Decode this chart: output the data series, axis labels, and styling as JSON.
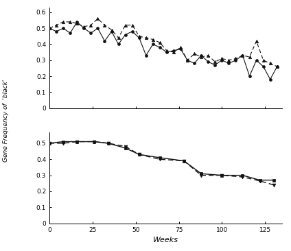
{
  "upper_solid_weeks": [
    0,
    4,
    8,
    12,
    16,
    20,
    24,
    28,
    32,
    36,
    40,
    44,
    48,
    52,
    56,
    60,
    64,
    68,
    72,
    76,
    80,
    84,
    88,
    92,
    96,
    100,
    104,
    108,
    112,
    116,
    120,
    124,
    128,
    132
  ],
  "upper_solid_vals": [
    0.5,
    0.48,
    0.5,
    0.47,
    0.54,
    0.5,
    0.47,
    0.5,
    0.42,
    0.48,
    0.4,
    0.46,
    0.48,
    0.44,
    0.33,
    0.4,
    0.38,
    0.35,
    0.36,
    0.37,
    0.3,
    0.28,
    0.33,
    0.29,
    0.27,
    0.3,
    0.28,
    0.3,
    0.33,
    0.2,
    0.3,
    0.26,
    0.18,
    0.26
  ],
  "upper_dashed_weeks": [
    0,
    4,
    8,
    12,
    16,
    20,
    24,
    28,
    32,
    36,
    40,
    44,
    48,
    52,
    56,
    60,
    64,
    68,
    72,
    76,
    80,
    84,
    88,
    92,
    96,
    100,
    104,
    108,
    112,
    116,
    120,
    124,
    128,
    132
  ],
  "upper_dashed_vals": [
    0.5,
    0.52,
    0.54,
    0.54,
    0.53,
    0.51,
    0.52,
    0.56,
    0.52,
    0.49,
    0.44,
    0.52,
    0.52,
    0.45,
    0.44,
    0.43,
    0.41,
    0.36,
    0.35,
    0.38,
    0.3,
    0.34,
    0.32,
    0.33,
    0.29,
    0.31,
    0.3,
    0.31,
    0.33,
    0.32,
    0.42,
    0.3,
    0.28,
    0.26
  ],
  "lower_solid_weeks": [
    0,
    8,
    16,
    26,
    34,
    44,
    52,
    64,
    78,
    88,
    100,
    112,
    122,
    130
  ],
  "lower_solid_vals": [
    0.5,
    0.51,
    0.51,
    0.51,
    0.5,
    0.47,
    0.43,
    0.41,
    0.39,
    0.31,
    0.3,
    0.3,
    0.27,
    0.27
  ],
  "lower_dashed_weeks": [
    0,
    8,
    16,
    26,
    34,
    44,
    52,
    64,
    78,
    88,
    100,
    112,
    122,
    130
  ],
  "lower_dashed_vals": [
    0.5,
    0.5,
    0.51,
    0.51,
    0.5,
    0.48,
    0.43,
    0.4,
    0.39,
    0.3,
    0.3,
    0.29,
    0.265,
    0.24
  ],
  "xlim": [
    0,
    135
  ],
  "ylim_upper": [
    0,
    0.63
  ],
  "ylim_lower": [
    0,
    0.57
  ],
  "yticks_upper": [
    0,
    0.1,
    0.2,
    0.3,
    0.4,
    0.5,
    0.6
  ],
  "yticks_lower": [
    0,
    0.1,
    0.2,
    0.3,
    0.4,
    0.5
  ],
  "ytick_labels_upper": [
    "0",
    "0.1",
    "0.2",
    "0.3",
    "0.4",
    "0.5",
    "0.6"
  ],
  "ytick_labels_lower": [
    "0",
    "0.1",
    "0.2",
    "0.3",
    "0.4",
    "0.5"
  ],
  "xticks": [
    0,
    25,
    50,
    75,
    100,
    125
  ],
  "xlabel": "Weeks",
  "ylabel": "Gene Frequency of  'black'",
  "line_color": "#111111",
  "background_color": "#ffffff"
}
